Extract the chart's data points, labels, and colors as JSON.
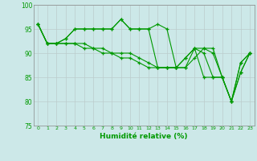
{
  "xlabel": "Humidité relative (%)",
  "ylabel": "",
  "xlim": [
    -0.5,
    23.5
  ],
  "ylim": [
    75,
    100
  ],
  "yticks": [
    75,
    80,
    85,
    90,
    95,
    100
  ],
  "xtick_labels": [
    "0",
    "1",
    "2",
    "3",
    "4",
    "5",
    "6",
    "7",
    "8",
    "9",
    "10",
    "11",
    "12",
    "13",
    "14",
    "15",
    "16",
    "17",
    "18",
    "19",
    "20",
    "21",
    "22",
    "23"
  ],
  "background_color": "#cce8e8",
  "grid_color": "#bbcccc",
  "line_color": "#009900",
  "marker": "+",
  "lines": [
    [
      96,
      92,
      92,
      93,
      95,
      95,
      95,
      95,
      95,
      97,
      95,
      95,
      95,
      96,
      95,
      87,
      87,
      89,
      91,
      91,
      85,
      80,
      88,
      90
    ],
    [
      96,
      92,
      92,
      93,
      95,
      95,
      95,
      95,
      95,
      97,
      95,
      95,
      95,
      87,
      87,
      87,
      87,
      91,
      85,
      85,
      85,
      80,
      88,
      90
    ],
    [
      96,
      92,
      92,
      92,
      92,
      92,
      91,
      91,
      90,
      90,
      90,
      89,
      88,
      87,
      87,
      87,
      89,
      91,
      91,
      90,
      85,
      80,
      86,
      90
    ],
    [
      96,
      92,
      92,
      92,
      92,
      91,
      91,
      90,
      90,
      89,
      89,
      88,
      87,
      87,
      87,
      87,
      89,
      91,
      90,
      85,
      85,
      80,
      86,
      90
    ]
  ]
}
